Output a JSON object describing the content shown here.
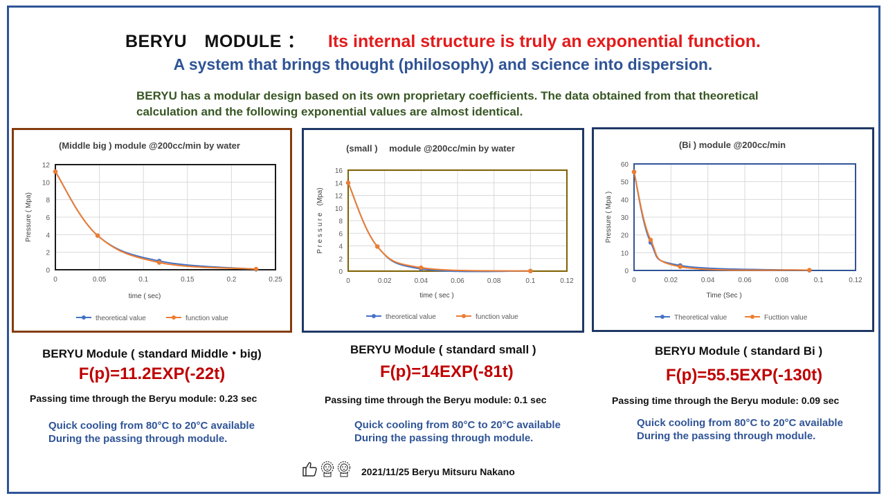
{
  "header": {
    "title_main": "BERYU　MODULE",
    "title_sep": "：",
    "title_tagline": "Its internal structure is truly an exponential function.",
    "subtitle": "A system that brings thought (philosophy) and science into dispersion.",
    "description": "BERYU has a modular design based on its own proprietary coefficients. The data obtained from that theoretical calculation and the following exponential values are almost identical."
  },
  "modules": [
    {
      "title": "BERYU Module ( standard Middle・big)",
      "formula": "F(p)=11.2EXP(-22t)",
      "passing": "Passing time through the Beryu module: 0.23 sec",
      "cooling_1": "Quick cooling from 80°C to 20°C available",
      "cooling_2": "During the passing through module.",
      "border_color": "#843c0c",
      "plot_border_color": "#1a1a1a"
    },
    {
      "title": "BERYU Module ( standard small )",
      "formula": "F(p)=14EXP(-81t)",
      "passing": "Passing time through the Beryu module: 0.1 sec",
      "cooling_1": "Quick cooling from 80°C to 20°C available",
      "cooling_2": "During the passing through module.",
      "border_color": "#1f3864",
      "plot_border_color": "#7f6000"
    },
    {
      "title": "BERYU Module ( standard Bi )",
      "formula": "F(p)=55.5EXP(-130t)",
      "passing": "Passing time through the Beryu module: 0.09 sec",
      "cooling_1": "Quick cooling from 80°C to 20°C available",
      "cooling_2": "During the passing through module.",
      "border_color": "#1f3864",
      "plot_border_color": "#2f5496"
    }
  ],
  "chart_data": [
    {
      "type": "line",
      "title": "(Middle big ) module @200cc/min by water",
      "xlabel": "time ( sec)",
      "ylabel": "Pressure ( Mpa)",
      "xlim": [
        0,
        0.25
      ],
      "ylim": [
        0,
        12
      ],
      "xticks": [
        "0",
        "0.05",
        "0.1",
        "0.15",
        "0.2",
        "0.25"
      ],
      "yticks": [
        "0",
        "2",
        "4",
        "6",
        "8",
        "10",
        "12"
      ],
      "xtick_values": [
        0,
        0.05,
        0.1,
        0.15,
        0.2,
        0.25
      ],
      "ytick_values": [
        0,
        2,
        4,
        6,
        8,
        10,
        12
      ],
      "grid": true,
      "legend": "bottom",
      "series": [
        {
          "name": "theoretical value",
          "color": "#4472c4",
          "x": [
            0,
            0.048,
            0.118,
            0.228
          ],
          "y": [
            11.2,
            3.9,
            1.0,
            0.05
          ]
        },
        {
          "name": "function value",
          "color": "#ed7d31",
          "x": [
            0,
            0.048,
            0.118,
            0.228
          ],
          "y": [
            11.2,
            3.9,
            0.82,
            0.08
          ]
        }
      ]
    },
    {
      "type": "line",
      "title": "(small )　 module @200cc/min by water",
      "xlabel": "time ( sec )",
      "ylabel": "P r e s s u r e　(Mpa)",
      "xlim": [
        0,
        0.12
      ],
      "ylim": [
        0,
        16
      ],
      "xticks": [
        "0",
        "0.02",
        "0.04",
        "0.06",
        "0.08",
        "0.1",
        "0.12"
      ],
      "yticks": [
        "0",
        "2",
        "4",
        "6",
        "8",
        "10",
        "12",
        "14",
        "16"
      ],
      "xtick_values": [
        0,
        0.02,
        0.04,
        0.06,
        0.08,
        0.1,
        0.12
      ],
      "ytick_values": [
        0,
        2,
        4,
        6,
        8,
        10,
        12,
        14,
        16
      ],
      "grid": true,
      "legend": "bottom",
      "series": [
        {
          "name": "theoretical value",
          "color": "#4472c4",
          "x": [
            0,
            0.016,
            0.04,
            0.1
          ],
          "y": [
            14,
            3.9,
            0.35,
            0.02
          ]
        },
        {
          "name": "function value",
          "color": "#ed7d31",
          "x": [
            0,
            0.016,
            0.04,
            0.1
          ],
          "y": [
            14,
            3.9,
            0.55,
            0.02
          ]
        }
      ]
    },
    {
      "type": "line",
      "title": "(Bi ) module @200cc/min",
      "xlabel": "Time (Sec )",
      "ylabel": "Pressure ( Mpa )",
      "xlim": [
        0,
        0.12
      ],
      "ylim": [
        0,
        60
      ],
      "xticks": [
        "0",
        "0.02",
        "0.04",
        "0.06",
        "0.08",
        "0.1",
        "0.12"
      ],
      "yticks": [
        "0",
        "10",
        "20",
        "30",
        "40",
        "50",
        "60"
      ],
      "xtick_values": [
        0,
        0.02,
        0.04,
        0.06,
        0.08,
        0.1,
        0.12
      ],
      "ytick_values": [
        0,
        10,
        20,
        30,
        40,
        50,
        60
      ],
      "grid": true,
      "legend": "bottom",
      "series": [
        {
          "name": "Theoretical value",
          "color": "#4472c4",
          "x": [
            0,
            0.009,
            0.025,
            0.095
          ],
          "y": [
            55.5,
            15.8,
            2.8,
            0.1
          ]
        },
        {
          "name": "Fucttion value",
          "color": "#ed7d31",
          "x": [
            0,
            0.009,
            0.025,
            0.095
          ],
          "y": [
            55.5,
            17.2,
            2.1,
            0.2
          ]
        }
      ]
    }
  ],
  "footer": {
    "text": "2021/11/25 Beryu Mitsuru Nakano",
    "icons": [
      "thumbs-up-icon",
      "lion-mascot-icon",
      "lion-mascot-icon"
    ]
  }
}
